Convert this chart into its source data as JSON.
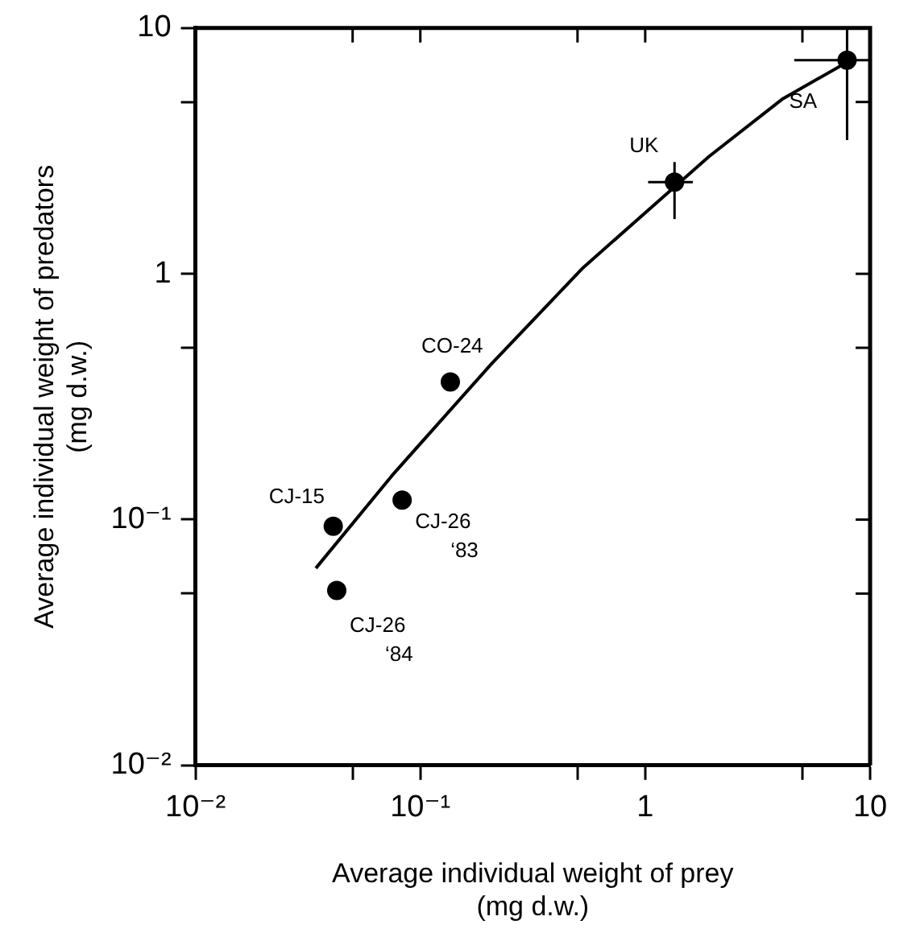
{
  "chart_data": {
    "type": "scatter",
    "xlabel": "Average individual weight of prey\n(mg d.w.)",
    "ylabel": "Average individual weight of predators\n(mg d.w.)",
    "log": "xy",
    "grid": false,
    "legend": false,
    "marker": "circle",
    "xlim": [
      0.01,
      10
    ],
    "ylim": [
      0.01,
      10
    ],
    "xticks": [
      {
        "value": 0.01,
        "label": "10⁻²"
      },
      {
        "value": 0.05,
        "label": null
      },
      {
        "value": 0.1,
        "label": "10⁻¹"
      },
      {
        "value": 0.5,
        "label": null
      },
      {
        "value": 1,
        "label": "1"
      },
      {
        "value": 5,
        "label": null
      },
      {
        "value": 10,
        "label": "10"
      }
    ],
    "yticks": [
      {
        "value": 0.01,
        "label": "10⁻²"
      },
      {
        "value": 0.05,
        "label": null
      },
      {
        "value": 0.1,
        "label": "10⁻¹"
      },
      {
        "value": 0.5,
        "label": null
      },
      {
        "value": 1,
        "label": "1"
      },
      {
        "value": 5,
        "label": null
      },
      {
        "value": 10,
        "label": "10"
      }
    ],
    "series": [
      {
        "color": "#000000",
        "x": [
          7.9,
          1.35,
          0.136,
          0.041,
          0.083,
          0.0425
        ],
        "values": [
          7.4,
          2.36,
          0.363,
          0.094,
          0.12,
          0.0515
        ],
        "errors": [
          [
            3.5,
            10
          ],
          [
            1.67,
            2.85
          ],
          null,
          null,
          null,
          null
        ],
        "xerrors": [
          [
            4.6,
            10
          ],
          [
            1.03,
            1.63
          ],
          null,
          null,
          null,
          null
        ]
      },
      {
        "type": "line",
        "color": "#000000",
        "line_style": "solid",
        "marker": "none",
        "x": [
          0.0343,
          0.0767,
          0.207,
          0.53,
          1.92,
          4.06,
          7.73
        ],
        "values": [
          0.0634,
          0.155,
          0.43,
          1.06,
          3.0,
          5.13,
          7.18
        ]
      }
    ],
    "annotations": [
      {
        "text": "SA",
        "x": 7.9,
        "y": 7.4
      },
      {
        "text": "UK",
        "x": 1.35,
        "y": 2.36
      },
      {
        "text": "CO-24",
        "x": 0.136,
        "y": 0.363
      },
      {
        "text": "CJ-15",
        "x": 0.041,
        "y": 0.094
      },
      {
        "text": "CJ-26\n‘83",
        "x": 0.083,
        "y": 0.12
      },
      {
        "text": "CJ-26\n‘84",
        "x": 0.0425,
        "y": 0.0515
      }
    ]
  }
}
